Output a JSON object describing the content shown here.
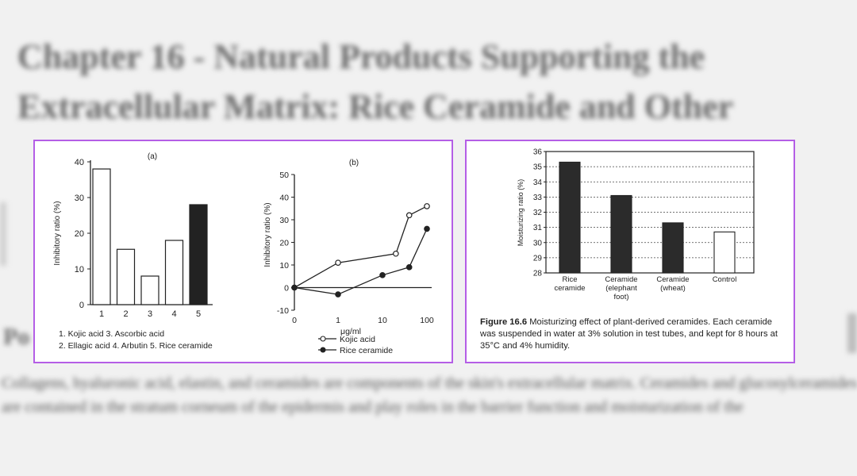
{
  "background": {
    "heading": "Chapter 16 - Natural Products Supporting the Extracellular Matrix: Rice Ceramide and Other",
    "subheading": "Po",
    "body_text": "Collagens, hyaluronic acid, elastin, and ceramides are components of the skin's extracellular matrix. Ceramides and glucosylceramides are contained in the stratum corneum of the epidermis and play roles in the barrier function and moisturization of the"
  },
  "highlight_color": "#b45ee6",
  "chart_data": [
    {
      "type": "bar",
      "panel_label": "(a)",
      "ylabel": "Inhibitory ratio (%)",
      "ylim": [
        0,
        40
      ],
      "yticks": [
        0,
        10,
        20,
        30,
        40
      ],
      "categories": [
        "1",
        "2",
        "3",
        "4",
        "5"
      ],
      "values": [
        38,
        15.5,
        8,
        18,
        28
      ],
      "fills": [
        "#ffffff",
        "#ffffff",
        "#ffffff",
        "#ffffff",
        "#222222"
      ],
      "legend_lines": [
        "1.  Kojic acid   3.  Ascorbic acid",
        "2.  Ellagic acid  4.  Arbutin   5.  Rice ceramide"
      ]
    },
    {
      "type": "line",
      "panel_label": "(b)",
      "ylabel": "Inhibitory ratio (%)",
      "xlabel": "μg/ml",
      "ylim": [
        -10,
        50
      ],
      "yticks": [
        -10,
        0,
        10,
        20,
        30,
        40,
        50
      ],
      "xticks": [
        "0",
        "1",
        "10",
        "100"
      ],
      "series": [
        {
          "name": "Kojic acid",
          "marker": "open",
          "x": [
            0,
            1,
            20,
            40,
            100
          ],
          "y": [
            0,
            11,
            15,
            32,
            36
          ]
        },
        {
          "name": "Rice ceramide",
          "marker": "filled",
          "x": [
            0,
            1,
            10,
            40,
            100
          ],
          "y": [
            0,
            -3,
            5.5,
            9,
            26
          ]
        }
      ]
    },
    {
      "type": "bar",
      "ylabel": "Moisturizing ratio (%)",
      "ylim": [
        28,
        36
      ],
      "yticks": [
        28,
        29,
        30,
        31,
        32,
        33,
        34,
        35,
        36
      ],
      "categories": [
        [
          "Rice",
          "ceramide"
        ],
        [
          "Ceramide",
          "(elephant",
          "foot)"
        ],
        [
          "Ceramide",
          "(wheat)"
        ],
        [
          "Control"
        ]
      ],
      "values": [
        35.3,
        33.1,
        31.3,
        30.7
      ],
      "fills": [
        "#2b2b2b",
        "#2b2b2b",
        "#2b2b2b",
        "#ffffff"
      ],
      "grid": true
    }
  ],
  "figure_caption": {
    "label": "Figure 16.6",
    "text": "Moisturizing effect of plant-derived ceramides. Each ceramide was suspended in water at 3% solution in test tubes, and kept for 8 hours at 35°C and 4% humidity."
  }
}
